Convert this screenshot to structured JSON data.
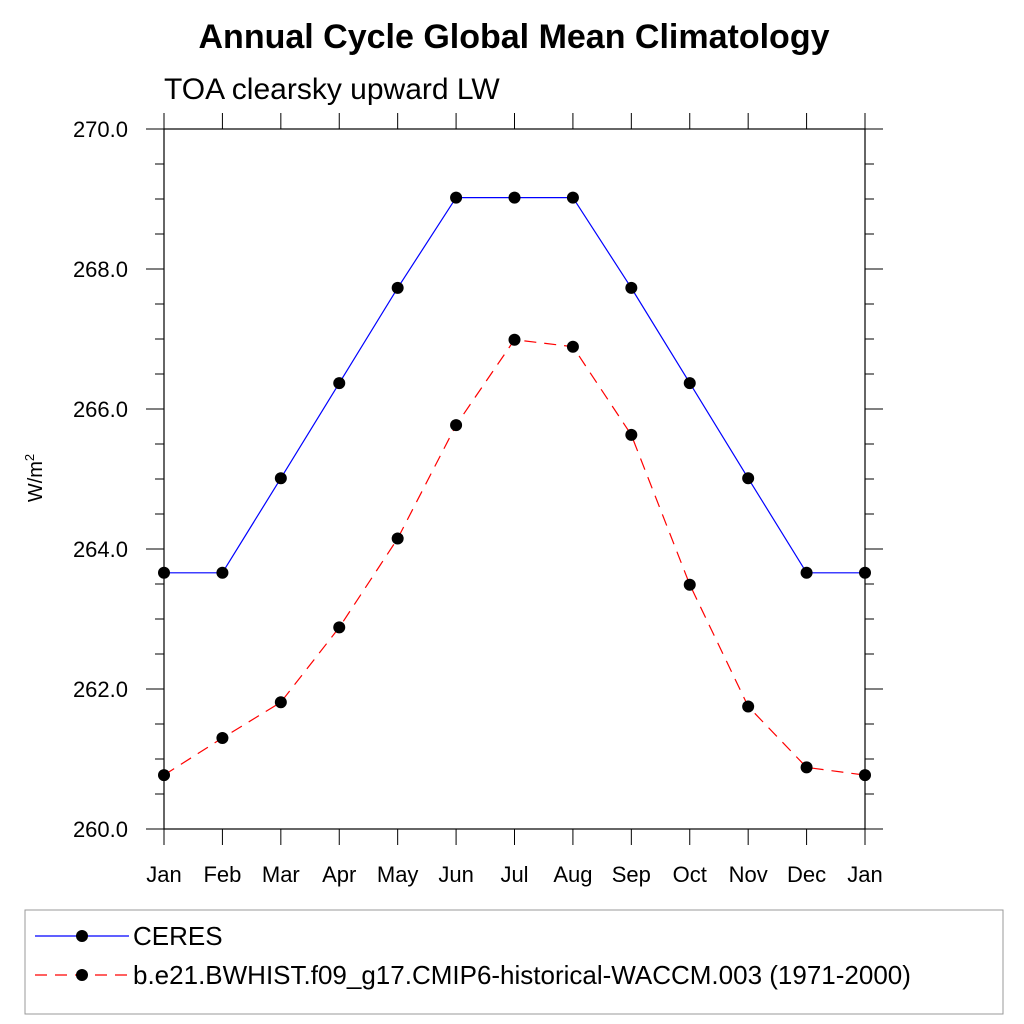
{
  "chart_data": {
    "type": "line",
    "title": "Annual Cycle Global Mean Climatology",
    "subtitle": "TOA clearsky upward LW",
    "ylabel_main": "W/m",
    "ylabel_sup": "2",
    "ylim": [
      260.0,
      270.0
    ],
    "yticks": [
      "260.0",
      "262.0",
      "264.0",
      "266.0",
      "268.0",
      "270.0"
    ],
    "ytick_values": [
      260,
      262,
      264,
      266,
      268,
      270
    ],
    "categories": [
      "Jan",
      "Feb",
      "Mar",
      "Apr",
      "May",
      "Jun",
      "Jul",
      "Aug",
      "Sep",
      "Oct",
      "Nov",
      "Dec",
      "Jan"
    ],
    "grid": false,
    "legend_position": "bottom",
    "series": [
      {
        "name": "CERES",
        "color": "#0000ff",
        "dash": "solid",
        "values": [
          263.66,
          263.66,
          265.01,
          266.37,
          267.73,
          269.02,
          269.02,
          269.02,
          267.73,
          266.37,
          265.01,
          263.66,
          263.66
        ]
      },
      {
        "name": "b.e21.BWHIST.f09_g17.CMIP6-historical-WACCM.003 (1971-2000)",
        "color": "#ff0000",
        "dash": "dashed",
        "values": [
          260.77,
          261.3,
          261.81,
          262.88,
          264.15,
          265.77,
          266.99,
          266.89,
          265.63,
          263.49,
          261.75,
          260.88,
          260.77
        ]
      }
    ]
  }
}
